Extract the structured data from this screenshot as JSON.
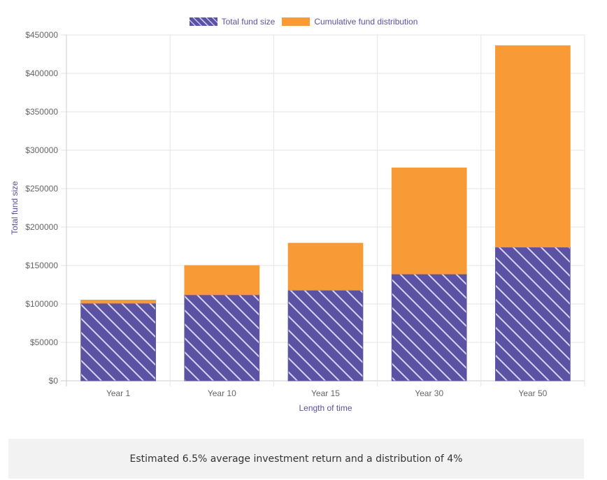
{
  "chart_data": {
    "type": "bar",
    "stacked": true,
    "categories": [
      "Year 1",
      "Year 10",
      "Year 15",
      "Year 30",
      "Year 50"
    ],
    "series": [
      {
        "name": "Total fund size",
        "values": [
          101000,
          112000,
          118000,
          139000,
          174000
        ],
        "color": "#5b52a3",
        "pattern": "diagonal-stripes"
      },
      {
        "name": "Cumulative fund distribution",
        "values": [
          4000,
          38000,
          61000,
          138000,
          262000
        ],
        "color": "#f89a35"
      }
    ],
    "xlabel": "Length of time",
    "ylabel": "Total fund size",
    "ylim": [
      0,
      450000
    ],
    "yticks": [
      "$0",
      "$50000",
      "$100000",
      "$150000",
      "$200000",
      "$250000",
      "$300000",
      "$350000",
      "$400000",
      "$450000"
    ],
    "grid": true,
    "legend_position": "top-center"
  },
  "caption": "Estimated 6.5% average investment return and a distribution of 4%",
  "colors": {
    "axis_label": "#5b52a3",
    "tick": "#666666",
    "grid": "#e5e5e5",
    "caption_bg": "#f2f2f2"
  }
}
